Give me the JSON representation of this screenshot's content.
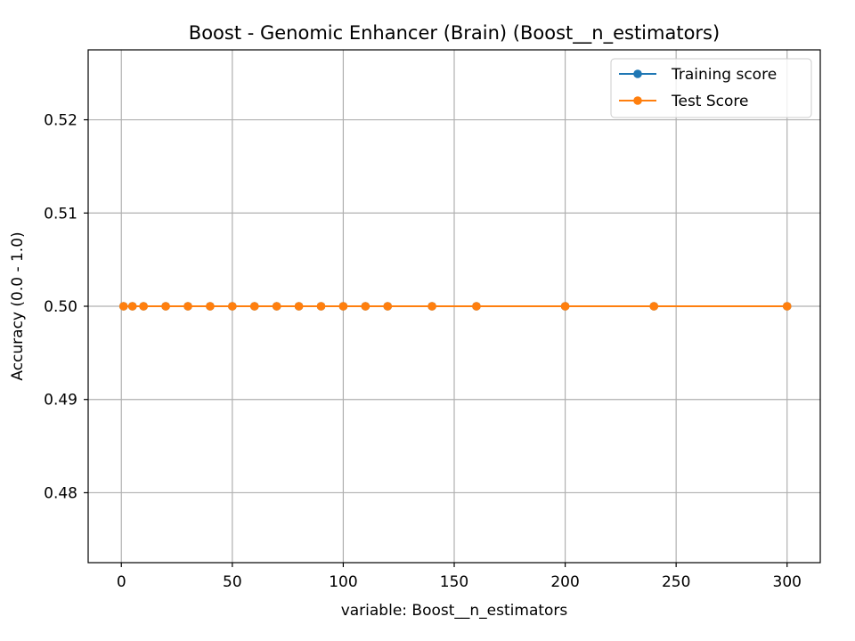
{
  "chart_data": {
    "type": "line",
    "title": "Boost - Genomic Enhancer (Brain) (Boost__n_estimators)",
    "xlabel": "variable: Boost__n_estimators",
    "ylabel": "Accuracy (0.0 - 1.0)",
    "xlim": [
      -14.95,
      314.95
    ],
    "ylim": [
      0.4725,
      0.5275
    ],
    "xticks": [
      0,
      50,
      100,
      150,
      200,
      250,
      300
    ],
    "xtick_labels": [
      "0",
      "50",
      "100",
      "150",
      "200",
      "250",
      "300"
    ],
    "yticks": [
      0.48,
      0.49,
      0.5,
      0.51,
      0.52
    ],
    "ytick_labels": [
      "0.48",
      "0.49",
      "0.50",
      "0.51",
      "0.52"
    ],
    "grid": true,
    "legend_position": "top-right",
    "x": [
      1,
      5,
      10,
      20,
      30,
      40,
      50,
      60,
      70,
      80,
      90,
      100,
      110,
      120,
      140,
      160,
      200,
      240,
      300
    ],
    "series": [
      {
        "name": "Training score",
        "color": "#1f77b4",
        "values": [
          0.5,
          0.5,
          0.5,
          0.5,
          0.5,
          0.5,
          0.5,
          0.5,
          0.5,
          0.5,
          0.5,
          0.5,
          0.5,
          0.5,
          0.5,
          0.5,
          0.5,
          0.5,
          0.5
        ]
      },
      {
        "name": "Test Score",
        "color": "#ff7f0e",
        "values": [
          0.5,
          0.5,
          0.5,
          0.5,
          0.5,
          0.5,
          0.5,
          0.5,
          0.5,
          0.5,
          0.5,
          0.5,
          0.5,
          0.5,
          0.5,
          0.5,
          0.5,
          0.5,
          0.5
        ]
      }
    ]
  }
}
